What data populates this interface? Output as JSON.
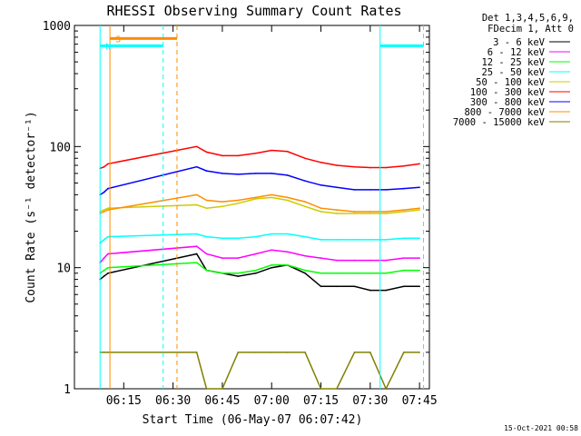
{
  "chart_data": {
    "type": "line",
    "title": "RHESSI Observing Summary Count Rates",
    "xlabel": "Start Time (06-May-07 06:07:42)",
    "ylabel": "Count Rate (s⁻¹ detector⁻¹)",
    "yscale": "log",
    "ylim": [
      1,
      1000
    ],
    "xlim_minutes": [
      6.0,
      7.8
    ],
    "x_unit": "hours (UT)",
    "x_ticks": [
      {
        "label": "06:15",
        "value": 6.25
      },
      {
        "label": "06:30",
        "value": 6.5
      },
      {
        "label": "06:45",
        "value": 6.75
      },
      {
        "label": "07:00",
        "value": 7.0
      },
      {
        "label": "07:15",
        "value": 7.25
      },
      {
        "label": "07:30",
        "value": 7.5
      },
      {
        "label": "07:45",
        "value": 7.75
      }
    ],
    "y_ticks": [
      {
        "label": "1",
        "value": 1
      },
      {
        "label": "10",
        "value": 10
      },
      {
        "label": "100",
        "value": 100
      },
      {
        "label": "1000",
        "value": 1000
      }
    ],
    "legend_header": [
      "Det 1,3,4,5,6,9,",
      "FDecim 1, Att 0"
    ],
    "legend_position": "top-right, outside plot",
    "series": [
      {
        "name": "3 - 6 keV",
        "color": "#000000",
        "x": [
          6.13,
          6.15,
          6.17,
          6.62,
          6.67,
          6.75,
          6.83,
          6.92,
          7.0,
          7.08,
          7.17,
          7.25,
          7.33,
          7.42,
          7.5,
          7.58,
          7.67,
          7.75
        ],
        "y": [
          8,
          8.5,
          9,
          13,
          9.5,
          9,
          8.5,
          9,
          10,
          10.5,
          9,
          7,
          7,
          7,
          6.5,
          6.5,
          7,
          7
        ]
      },
      {
        "name": "6 - 12 keV",
        "color": "#ff00ff",
        "x": [
          6.13,
          6.15,
          6.17,
          6.62,
          6.67,
          6.75,
          6.83,
          6.92,
          7.0,
          7.08,
          7.17,
          7.25,
          7.33,
          7.42,
          7.5,
          7.58,
          7.67,
          7.75
        ],
        "y": [
          11,
          12,
          13,
          15,
          13,
          12,
          12,
          13,
          14,
          13.5,
          12.5,
          12,
          11.5,
          11.5,
          11.5,
          11.5,
          12,
          12
        ]
      },
      {
        "name": "12 - 25 keV",
        "color": "#00ff00",
        "x": [
          6.13,
          6.15,
          6.17,
          6.62,
          6.67,
          6.75,
          6.83,
          6.92,
          7.0,
          7.08,
          7.17,
          7.25,
          7.33,
          7.42,
          7.5,
          7.58,
          7.67,
          7.75
        ],
        "y": [
          9,
          9.5,
          10,
          11,
          9.5,
          9,
          9,
          9.5,
          10.5,
          10.5,
          9.5,
          9,
          9,
          9,
          9,
          9,
          9.5,
          9.5
        ]
      },
      {
        "name": "25 - 50 keV",
        "color": "#00ffff",
        "x": [
          6.13,
          6.15,
          6.17,
          6.62,
          6.67,
          6.75,
          6.83,
          6.92,
          7.0,
          7.08,
          7.17,
          7.25,
          7.33,
          7.42,
          7.5,
          7.58,
          7.67,
          7.75
        ],
        "y": [
          16,
          17,
          18,
          19,
          18,
          17.5,
          17.5,
          18,
          19,
          19,
          18,
          17,
          17,
          17,
          17,
          17,
          17.5,
          17.5
        ]
      },
      {
        "name": "50 - 100 keV",
        "color": "#cccc00",
        "x": [
          6.13,
          6.15,
          6.17,
          6.62,
          6.67,
          6.75,
          6.83,
          6.92,
          7.0,
          7.08,
          7.17,
          7.25,
          7.33,
          7.42,
          7.5,
          7.58,
          7.67,
          7.75
        ],
        "y": [
          29,
          30,
          31,
          33,
          31,
          32,
          34,
          37,
          38,
          36,
          32,
          29,
          28,
          28,
          28,
          28,
          29,
          30
        ]
      },
      {
        "name": "100 - 300 keV",
        "color": "#ff0000",
        "x": [
          6.13,
          6.15,
          6.17,
          6.62,
          6.67,
          6.75,
          6.83,
          6.92,
          7.0,
          7.08,
          7.17,
          7.25,
          7.33,
          7.42,
          7.5,
          7.58,
          7.67,
          7.75
        ],
        "y": [
          66,
          68,
          72,
          100,
          90,
          84,
          84,
          88,
          93,
          91,
          80,
          74,
          70,
          68,
          67,
          67,
          69,
          72
        ]
      },
      {
        "name": "300 - 800 keV",
        "color": "#0000ff",
        "x": [
          6.13,
          6.15,
          6.17,
          6.62,
          6.67,
          6.75,
          6.83,
          6.92,
          7.0,
          7.08,
          7.17,
          7.25,
          7.33,
          7.42,
          7.5,
          7.58,
          7.67,
          7.75
        ],
        "y": [
          40,
          42,
          45,
          68,
          63,
          60,
          59,
          60,
          60,
          58,
          52,
          48,
          46,
          44,
          44,
          44,
          45,
          46
        ]
      },
      {
        "name": "800 - 7000 keV",
        "color": "#ff8c00",
        "x": [
          6.13,
          6.15,
          6.17,
          6.62,
          6.67,
          6.75,
          6.83,
          6.92,
          7.0,
          7.08,
          7.17,
          7.25,
          7.33,
          7.42,
          7.5,
          7.58,
          7.67,
          7.75
        ],
        "y": [
          28,
          29,
          30,
          40,
          36,
          35,
          36,
          38,
          40,
          38,
          35,
          31,
          30,
          29,
          29,
          29,
          30,
          31
        ]
      },
      {
        "name": "7000 - 15000 keV",
        "color": "#808000",
        "x": [
          6.13,
          6.15,
          6.17,
          6.62,
          6.67,
          6.75,
          6.83,
          6.92,
          7.0,
          7.08,
          7.17,
          7.25,
          7.33,
          7.42,
          7.5,
          7.58,
          7.67,
          7.75
        ],
        "y": [
          2,
          2,
          2,
          2,
          1,
          1,
          2,
          2,
          2,
          2,
          2,
          1,
          1,
          2,
          2,
          1,
          2,
          2
        ]
      }
    ],
    "flags": [
      {
        "label": "S",
        "color": "#ff8c00",
        "start": 6.18,
        "end": 6.52,
        "value": 780
      },
      {
        "label": "N",
        "color": "#00ffff",
        "start": 6.13,
        "end": 6.45,
        "value": 680
      },
      {
        "label": "",
        "color": "#00ffff",
        "start": 7.55,
        "end": 7.77,
        "value": 680
      }
    ],
    "vlines": [
      {
        "x": 6.13,
        "color": "#00ffff",
        "style": "solid"
      },
      {
        "x": 6.18,
        "color": "#ff8c00",
        "style": "solid"
      },
      {
        "x": 6.45,
        "color": "#00ffff",
        "style": "dashed"
      },
      {
        "x": 6.52,
        "color": "#ff8c00",
        "style": "dashed"
      },
      {
        "x": 7.55,
        "color": "#00ffff",
        "style": "solid"
      },
      {
        "x": 7.77,
        "color": "#00ffff",
        "style": "dashed"
      }
    ],
    "timestamp": "15-Oct-2021 00:58"
  }
}
